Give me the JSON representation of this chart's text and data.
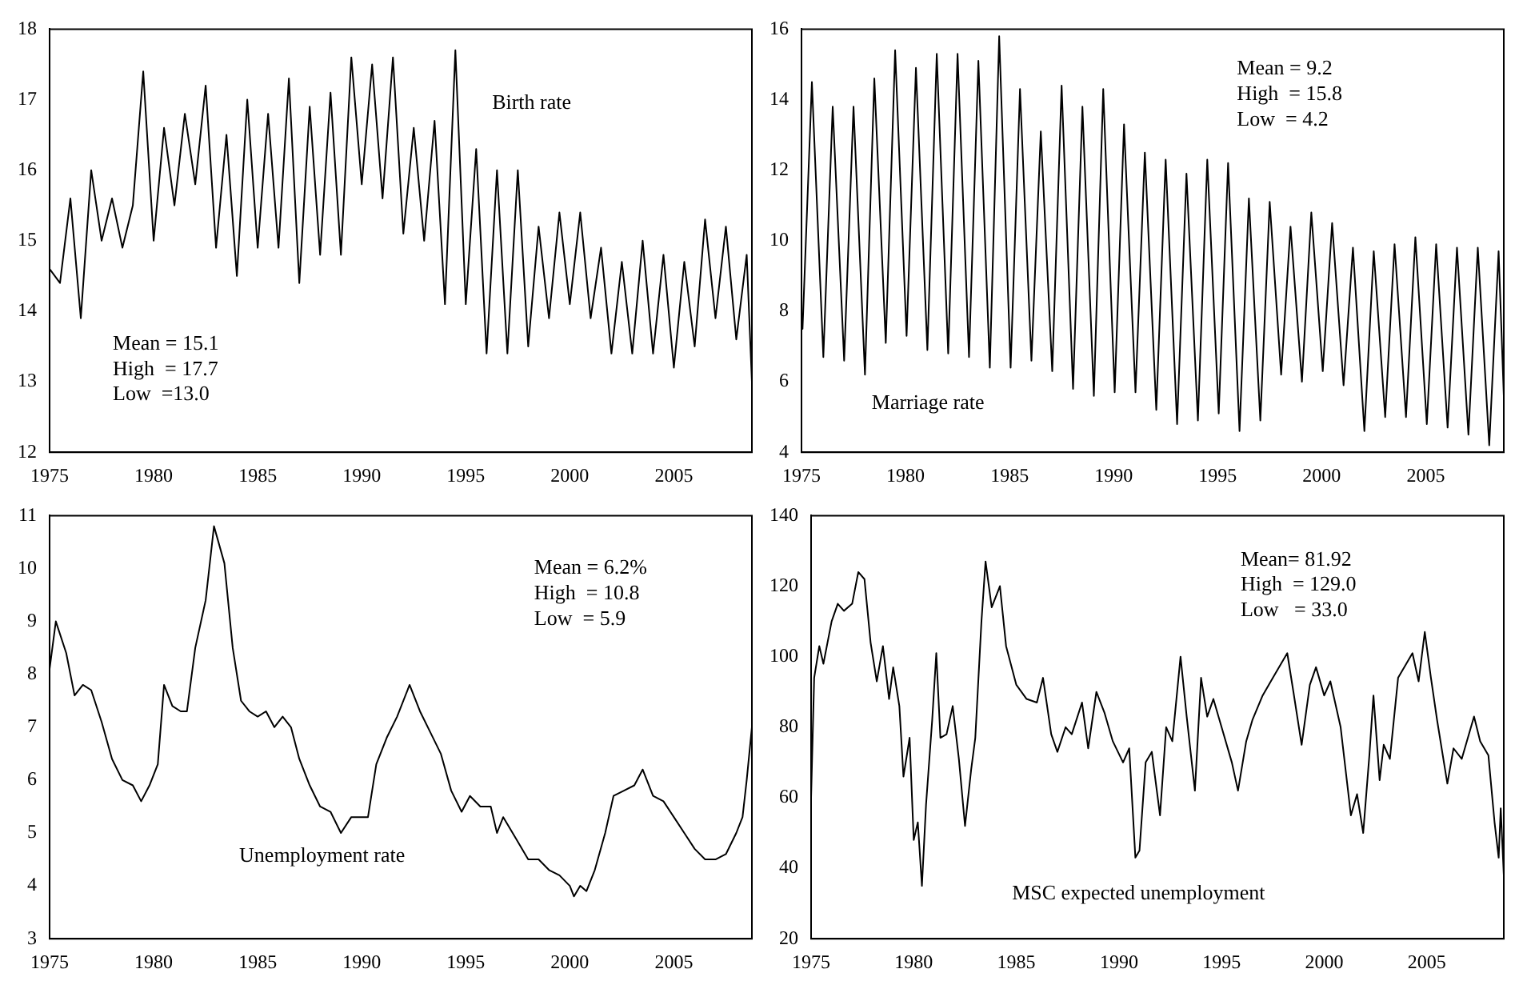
{
  "chart_data": [
    {
      "type": "line",
      "marker": "none",
      "annotations": [
        "Birth rate",
        "Mean = 15.1",
        "High  = 17.7",
        "Low  =13.0"
      ],
      "xlim": [
        1975,
        2008.75
      ],
      "xticks": [
        1975,
        1980,
        1985,
        1990,
        1995,
        2000,
        2005
      ],
      "ylim": [
        12,
        18
      ],
      "yticks": [
        12,
        13,
        14,
        15,
        16,
        17,
        18
      ],
      "series": [
        {
          "color": "#000000",
          "x": [
            1975,
            1975.5,
            1976,
            1976.5,
            1977,
            1977.5,
            1978,
            1978.5,
            1979,
            1979.5,
            1980,
            1980.5,
            1981,
            1981.5,
            1982,
            1982.5,
            1983,
            1983.5,
            1984,
            1984.5,
            1985,
            1985.5,
            1986,
            1986.5,
            1987,
            1987.5,
            1988,
            1988.5,
            1989,
            1989.5,
            1990,
            1990.5,
            1991,
            1991.5,
            1992,
            1992.5,
            1993,
            1993.5,
            1994,
            1994.5,
            1995,
            1995.5,
            1996,
            1996.5,
            1997,
            1997.5,
            1998,
            1998.5,
            1999,
            1999.5,
            2000,
            2000.5,
            2001,
            2001.5,
            2002,
            2002.5,
            2003,
            2003.5,
            2004,
            2004.5,
            2005,
            2005.5,
            2006,
            2006.5,
            2007,
            2007.5,
            2008,
            2008.5,
            2008.75
          ],
          "values": [
            14.6,
            14.4,
            15.6,
            13.9,
            16.0,
            15.0,
            15.6,
            14.9,
            15.5,
            17.4,
            15.0,
            16.6,
            15.5,
            16.8,
            15.8,
            17.2,
            14.9,
            16.5,
            14.5,
            17.0,
            14.9,
            16.8,
            14.9,
            17.3,
            14.4,
            16.9,
            14.8,
            17.1,
            14.8,
            17.6,
            15.8,
            17.5,
            15.6,
            17.6,
            15.1,
            16.6,
            15.0,
            16.7,
            14.1,
            17.7,
            14.1,
            16.3,
            13.4,
            16.0,
            13.4,
            16.0,
            13.5,
            15.2,
            13.9,
            15.4,
            14.1,
            15.4,
            13.9,
            14.9,
            13.4,
            14.7,
            13.4,
            15.0,
            13.4,
            14.8,
            13.2,
            14.7,
            13.5,
            15.3,
            13.9,
            15.2,
            13.6,
            14.8,
            13.0
          ]
        }
      ]
    },
    {
      "type": "line",
      "marker": "none",
      "annotations": [
        "Marriage rate",
        "Mean = 9.2",
        "High  = 15.8",
        "Low  = 4.2"
      ],
      "xlim": [
        1975,
        2008.75
      ],
      "xticks": [
        1975,
        1980,
        1985,
        1990,
        1995,
        2000,
        2005
      ],
      "ylim": [
        4,
        16
      ],
      "yticks": [
        4,
        6,
        8,
        10,
        12,
        14,
        16
      ],
      "series": [
        {
          "color": "#000000",
          "x": [
            1975.05,
            1975.5,
            1976.05,
            1976.5,
            1977.05,
            1977.5,
            1978.05,
            1978.5,
            1979.05,
            1979.5,
            1980.05,
            1980.5,
            1981.05,
            1981.5,
            1982.05,
            1982.5,
            1983.05,
            1983.5,
            1984.05,
            1984.5,
            1985.05,
            1985.5,
            1986.05,
            1986.5,
            1987.05,
            1987.5,
            1988.05,
            1988.5,
            1989.05,
            1989.5,
            1990.05,
            1990.5,
            1991.05,
            1991.5,
            1992.05,
            1992.5,
            1993.05,
            1993.5,
            1994.05,
            1994.5,
            1995.05,
            1995.5,
            1996.05,
            1996.5,
            1997.05,
            1997.5,
            1998.05,
            1998.5,
            1999.05,
            1999.5,
            2000.05,
            2000.5,
            2001.05,
            2001.5,
            2002.05,
            2002.5,
            2003.05,
            2003.5,
            2004.05,
            2004.5,
            2005.05,
            2005.5,
            2006.05,
            2006.5,
            2007.05,
            2007.5,
            2008.05,
            2008.5,
            2008.75
          ],
          "values": [
            7.5,
            14.5,
            6.7,
            13.8,
            6.6,
            13.8,
            6.2,
            14.6,
            7.1,
            15.4,
            7.3,
            14.9,
            6.9,
            15.3,
            6.8,
            15.3,
            6.7,
            15.1,
            6.4,
            15.8,
            6.4,
            14.3,
            6.6,
            13.1,
            6.3,
            14.4,
            5.8,
            13.8,
            5.6,
            14.3,
            5.7,
            13.3,
            5.7,
            12.5,
            5.2,
            12.3,
            4.8,
            11.9,
            4.9,
            12.3,
            5.1,
            12.2,
            4.6,
            11.2,
            4.9,
            11.1,
            6.2,
            10.4,
            6.0,
            10.8,
            6.3,
            10.5,
            5.9,
            9.8,
            4.6,
            9.7,
            5.0,
            9.9,
            5.0,
            10.1,
            4.8,
            9.9,
            4.7,
            9.8,
            4.5,
            9.8,
            4.2,
            9.7,
            5.6
          ]
        }
      ]
    },
    {
      "type": "line",
      "marker": "none",
      "annotations": [
        "Unemployment rate",
        "Mean = 6.2%",
        "High  = 10.8",
        "Low  = 5.9"
      ],
      "xlim": [
        1975,
        2008.75
      ],
      "xticks": [
        1975,
        1980,
        1985,
        1990,
        1995,
        2000,
        2005
      ],
      "ylim": [
        3,
        11
      ],
      "yticks": [
        3,
        4,
        5,
        6,
        7,
        8,
        9,
        10,
        11
      ],
      "series": [
        {
          "color": "#000000",
          "x": [
            1975,
            1975.3,
            1975.8,
            1976.2,
            1976.6,
            1977,
            1977.5,
            1978,
            1978.5,
            1979,
            1979.4,
            1979.8,
            1980.2,
            1980.5,
            1980.9,
            1981.3,
            1981.6,
            1982,
            1982.5,
            1982.9,
            1983.4,
            1983.8,
            1984.2,
            1984.6,
            1985,
            1985.4,
            1985.8,
            1986.2,
            1986.6,
            1987,
            1987.5,
            1988,
            1988.5,
            1989,
            1989.5,
            1990,
            1990.3,
            1990.7,
            1991.2,
            1991.7,
            1992.3,
            1992.8,
            1993.3,
            1993.8,
            1994.3,
            1994.8,
            1995.2,
            1995.7,
            1996.2,
            1996.5,
            1996.8,
            1997.4,
            1998,
            1998.5,
            1999,
            1999.5,
            2000,
            2000.2,
            2000.5,
            2000.8,
            2001.2,
            2001.7,
            2002.1,
            2002.6,
            2003.1,
            2003.5,
            2004,
            2004.5,
            2005,
            2005.5,
            2006,
            2006.5,
            2007,
            2007.5,
            2008,
            2008.3,
            2008.5,
            2008.75
          ],
          "values": [
            8.1,
            9.0,
            8.4,
            7.6,
            7.8,
            7.7,
            7.1,
            6.4,
            6.0,
            5.9,
            5.6,
            5.9,
            6.3,
            7.8,
            7.4,
            7.3,
            7.3,
            8.5,
            9.4,
            10.8,
            10.1,
            8.5,
            7.5,
            7.3,
            7.2,
            7.3,
            7.0,
            7.2,
            7.0,
            6.4,
            5.9,
            5.5,
            5.4,
            5.0,
            5.3,
            5.3,
            5.3,
            6.3,
            6.8,
            7.2,
            7.8,
            7.3,
            6.9,
            6.5,
            5.8,
            5.4,
            5.7,
            5.5,
            5.5,
            5.0,
            5.3,
            4.9,
            4.5,
            4.5,
            4.3,
            4.2,
            4.0,
            3.8,
            4.0,
            3.9,
            4.3,
            5.0,
            5.7,
            5.8,
            5.9,
            6.2,
            5.7,
            5.6,
            5.3,
            5.0,
            4.7,
            4.5,
            4.5,
            4.6,
            5.0,
            5.3,
            6.0,
            7.0
          ]
        }
      ]
    },
    {
      "type": "line",
      "marker": "none",
      "annotations": [
        "MSC expected unemployment",
        "Mean= 81.92",
        "High  = 129.0",
        "Low   = 33.0"
      ],
      "xlim": [
        1975,
        2008.75
      ],
      "xticks": [
        1975,
        1980,
        1985,
        1990,
        1995,
        2000,
        2005
      ],
      "ylim": [
        20,
        140
      ],
      "yticks": [
        20,
        40,
        60,
        80,
        100,
        120,
        140
      ],
      "series": [
        {
          "color": "#000000",
          "x": [
            1975,
            1975.15,
            1975.4,
            1975.6,
            1976,
            1976.3,
            1976.6,
            1977,
            1977.3,
            1977.6,
            1977.9,
            1978.2,
            1978.5,
            1978.8,
            1979,
            1979.3,
            1979.5,
            1979.8,
            1980,
            1980.2,
            1980.4,
            1980.6,
            1980.9,
            1981.1,
            1981.3,
            1981.6,
            1981.9,
            1982.2,
            1982.5,
            1982.8,
            1983,
            1983.3,
            1983.5,
            1983.8,
            1984.2,
            1984.5,
            1985,
            1985.5,
            1986,
            1986.3,
            1986.7,
            1987,
            1987.4,
            1987.7,
            1988.2,
            1988.5,
            1988.9,
            1989.3,
            1989.7,
            1990.2,
            1990.5,
            1990.8,
            1991,
            1991.3,
            1991.6,
            1992,
            1992.3,
            1992.6,
            1993,
            1993.3,
            1993.7,
            1994,
            1994.3,
            1994.6,
            1995,
            1995.5,
            1995.8,
            1996.2,
            1996.5,
            1997,
            1997.5,
            1998.2,
            1998.5,
            1998.9,
            1999.3,
            1999.6,
            2000,
            2000.3,
            2000.8,
            2001.3,
            2001.6,
            2001.9,
            2002.2,
            2002.4,
            2002.7,
            2002.9,
            2003.2,
            2003.6,
            2004,
            2004.3,
            2004.6,
            2004.9,
            2005.2,
            2005.5,
            2006,
            2006.3,
            2006.7,
            2007,
            2007.3,
            2007.6,
            2008,
            2008.3,
            2008.5,
            2008.6,
            2008.75
          ],
          "values": [
            60,
            94,
            103,
            98,
            110,
            115,
            113,
            115,
            124,
            122,
            104,
            93,
            103,
            88,
            97,
            86,
            66,
            77,
            48,
            53,
            35,
            58,
            82,
            101,
            77,
            78,
            86,
            71,
            52,
            68,
            77,
            110,
            127,
            114,
            120,
            103,
            92,
            88,
            87,
            94,
            78,
            73,
            80,
            78,
            87,
            74,
            90,
            84,
            76,
            70,
            74,
            43,
            45,
            70,
            73,
            55,
            80,
            76,
            100,
            83,
            62,
            94,
            83,
            88,
            80,
            70,
            62,
            76,
            82,
            89,
            94,
            101,
            90,
            75,
            92,
            97,
            89,
            93,
            80,
            55,
            61,
            50,
            72,
            89,
            65,
            75,
            71,
            94,
            98,
            101,
            93,
            107,
            94,
            82,
            64,
            74,
            71,
            77,
            83,
            76,
            72,
            53,
            43,
            57,
            38
          ]
        }
      ]
    }
  ]
}
